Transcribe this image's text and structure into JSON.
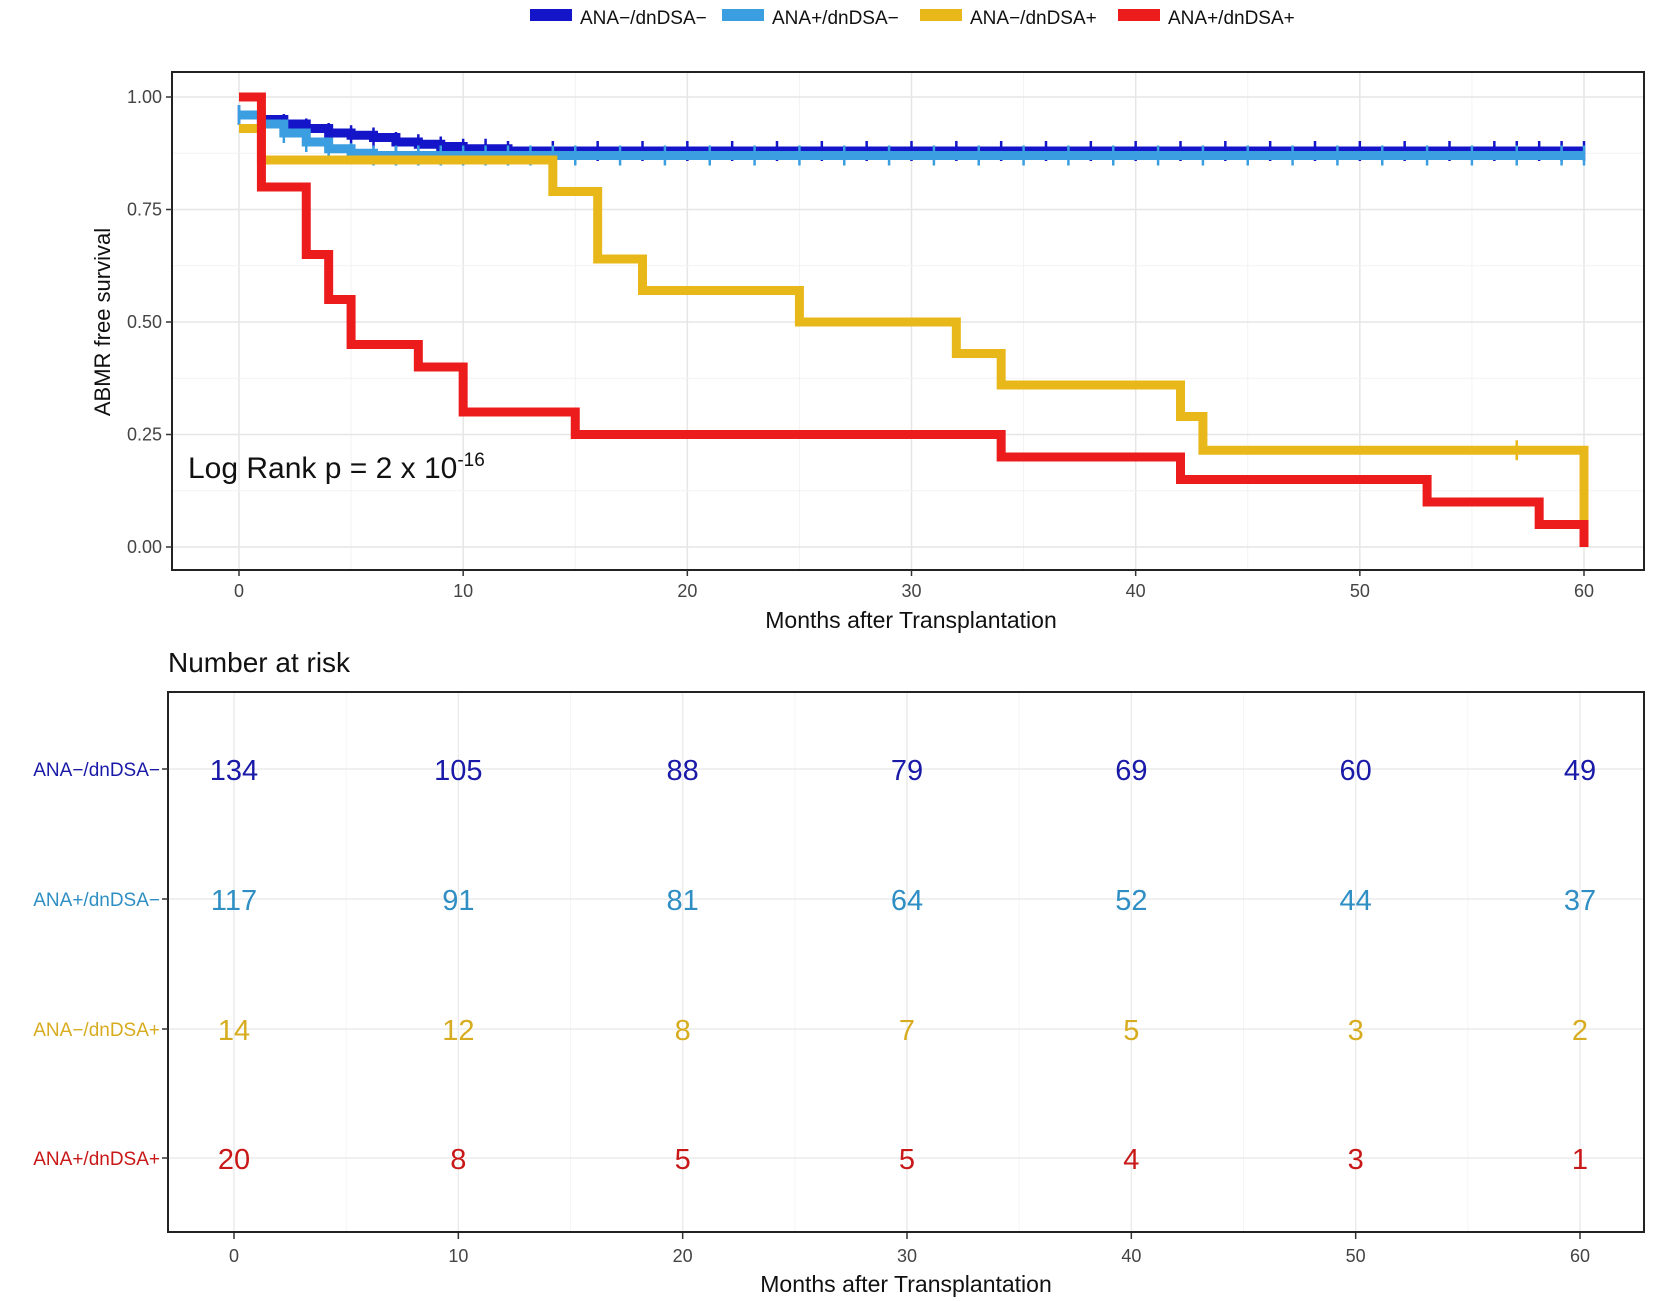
{
  "chart_data": [
    {
      "type": "line",
      "subtype": "kaplan-meier",
      "title": "",
      "xlabel": "Months after Transplantation",
      "ylabel": "ABMR free survival",
      "xlim": [
        0,
        60
      ],
      "ylim": [
        0,
        1
      ],
      "xticks": [
        0,
        10,
        20,
        30,
        40,
        50,
        60
      ],
      "yticks": [
        "0.00",
        "0.25",
        "0.50",
        "0.75",
        "1.00"
      ],
      "grid": true,
      "legend_position": "top",
      "annotation": {
        "text": "Log Rank p = 2 x 10",
        "superscript": "-16"
      },
      "series": [
        {
          "name": "ANA−/dnDSA−",
          "color": "#1414c8",
          "steps": [
            [
              0,
              0.96
            ],
            [
              1,
              0.95
            ],
            [
              2,
              0.94
            ],
            [
              3,
              0.93
            ],
            [
              4,
              0.92
            ],
            [
              5,
              0.915
            ],
            [
              6,
              0.91
            ],
            [
              7,
              0.9
            ],
            [
              8,
              0.895
            ],
            [
              9,
              0.89
            ],
            [
              10,
              0.885
            ],
            [
              12,
              0.88
            ],
            [
              60,
              0.88
            ]
          ],
          "censor": [
            0,
            1,
            2,
            3,
            4,
            5,
            6,
            7,
            8,
            9,
            10,
            11,
            12,
            14,
            16,
            18,
            20,
            22,
            24,
            26,
            28,
            30,
            32,
            34,
            36,
            38,
            40,
            42,
            44,
            46,
            48,
            50,
            52,
            54,
            56,
            57,
            58,
            59,
            60
          ]
        },
        {
          "name": "ANA+/dnDSA−",
          "color": "#3a9ee0",
          "steps": [
            [
              0,
              0.96
            ],
            [
              1,
              0.94
            ],
            [
              2,
              0.92
            ],
            [
              3,
              0.9
            ],
            [
              4,
              0.885
            ],
            [
              5,
              0.875
            ],
            [
              6,
              0.87
            ],
            [
              60,
              0.87
            ]
          ],
          "censor": [
            0,
            1,
            2,
            3,
            4,
            5,
            6,
            7,
            8,
            9,
            10,
            11,
            12,
            13,
            14,
            15,
            17,
            19,
            21,
            23,
            25,
            27,
            29,
            31,
            33,
            35,
            37,
            39,
            41,
            43,
            45,
            47,
            49,
            51,
            53,
            55,
            57,
            59,
            60
          ]
        },
        {
          "name": "ANA−/dnDSA+",
          "color": "#e8b81a",
          "steps": [
            [
              0,
              0.93
            ],
            [
              1,
              0.86
            ],
            [
              14,
              0.79
            ],
            [
              16,
              0.64
            ],
            [
              18,
              0.57
            ],
            [
              25,
              0.5
            ],
            [
              32,
              0.43
            ],
            [
              34,
              0.36
            ],
            [
              42,
              0.29
            ],
            [
              43,
              0.215
            ],
            [
              60,
              0.06
            ]
          ],
          "censor": [
            57
          ]
        },
        {
          "name": "ANA+/dnDSA+",
          "color": "#ec1c1c",
          "steps": [
            [
              0,
              1.0
            ],
            [
              1,
              0.8
            ],
            [
              3,
              0.65
            ],
            [
              4,
              0.55
            ],
            [
              5,
              0.45
            ],
            [
              8,
              0.4
            ],
            [
              10,
              0.3
            ],
            [
              15,
              0.25
            ],
            [
              34,
              0.2
            ],
            [
              42,
              0.15
            ],
            [
              53,
              0.1
            ],
            [
              58,
              0.05
            ],
            [
              60,
              0.0
            ]
          ],
          "censor": []
        }
      ]
    },
    {
      "type": "table",
      "title": "Number at risk",
      "xlabel": "Months after Transplantation",
      "xlim": [
        0,
        60
      ],
      "x": [
        0,
        10,
        20,
        30,
        40,
        50,
        60
      ],
      "rows": [
        {
          "label": "ANA−/dnDSA−",
          "color": "#1a1aa8",
          "values": [
            134,
            105,
            88,
            79,
            69,
            60,
            49
          ]
        },
        {
          "label": "ANA+/dnDSA−",
          "color": "#2f8fc4",
          "values": [
            117,
            91,
            81,
            64,
            52,
            44,
            37
          ]
        },
        {
          "label": "ANA−/dnDSA+",
          "color": "#d8ac20",
          "values": [
            14,
            12,
            8,
            7,
            5,
            3,
            2
          ]
        },
        {
          "label": "ANA+/dnDSA+",
          "color": "#c81818",
          "values": [
            20,
            8,
            5,
            5,
            4,
            3,
            1
          ]
        }
      ]
    }
  ]
}
